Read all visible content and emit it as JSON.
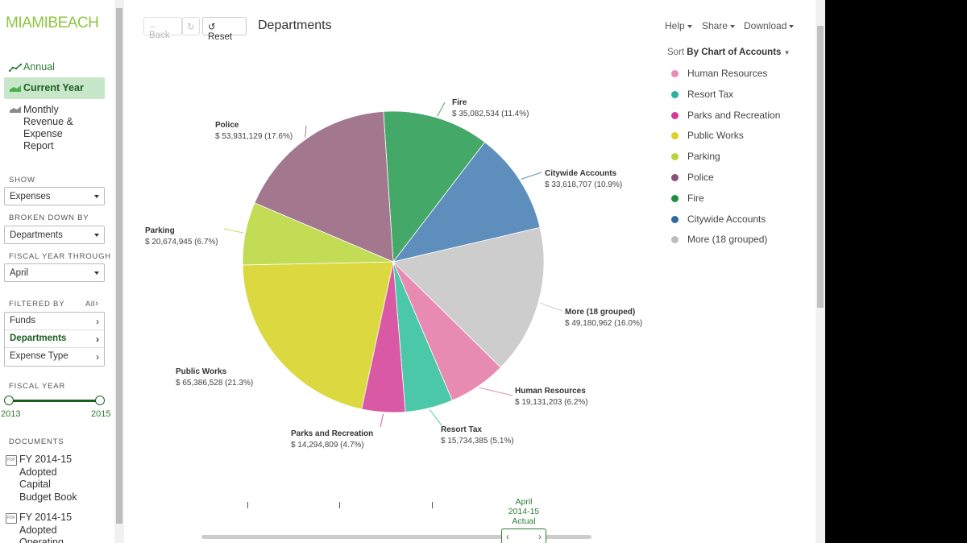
{
  "brand": {
    "part1": "MIAMI",
    "part2": "BEACH"
  },
  "nav": {
    "annual": "Annual",
    "current_year": "Current Year",
    "monthly_lines": [
      "Monthly",
      "Revenue &",
      "Expense",
      "Report"
    ]
  },
  "sidebar": {
    "show_label": "SHOW",
    "show_value": "Expenses",
    "broken_label": "BROKEN DOWN BY",
    "broken_value": "Departments",
    "fiscal_through_label": "FISCAL YEAR THROUGH",
    "fiscal_through_value": "April",
    "filtered_label": "FILTERED BY",
    "all_label": "All",
    "filters": [
      "Funds",
      "Departments",
      "Expense Type"
    ],
    "fiscal_year_label": "FISCAL YEAR",
    "year_start": "2013",
    "year_end": "2015",
    "documents_label": "DOCUMENTS",
    "documents": [
      {
        "lines": [
          "FY 2014-15",
          "Adopted",
          "Capital",
          "Budget Book"
        ]
      },
      {
        "lines": [
          "FY 2014-15",
          "Adopted",
          "Operating"
        ]
      }
    ]
  },
  "toolbar": {
    "back": "Back",
    "reset": "Reset",
    "title": "Departments",
    "help": "Help",
    "share": "Share",
    "download": "Download"
  },
  "sort": {
    "prefix": "Sort",
    "value": "By Chart of Accounts"
  },
  "legend": [
    {
      "label": "Human Resources",
      "color": "#e98bb3"
    },
    {
      "label": "Resort Tax",
      "color": "#2ab59a"
    },
    {
      "label": "Parks and Recreation",
      "color": "#d63a95"
    },
    {
      "label": "Public Works",
      "color": "#d8d22b"
    },
    {
      "label": "Parking",
      "color": "#b8d43b"
    },
    {
      "label": "Police",
      "color": "#8e4f77"
    },
    {
      "label": "Fire",
      "color": "#1f8e45"
    },
    {
      "label": "Citywide Accounts",
      "color": "#2c6ba0"
    },
    {
      "label": "More (18 grouped)",
      "color": "#bdbdbd"
    }
  ],
  "chart_data": {
    "type": "pie",
    "slices": [
      {
        "name": "Fire",
        "value": 35082534,
        "value_label": "$ 35,082,534 (11.4%)",
        "percent": 11.4,
        "color": "#44a868"
      },
      {
        "name": "Citywide Accounts",
        "value": 33618707,
        "value_label": "$ 33,618,707 (10.9%)",
        "percent": 10.9,
        "color": "#5e8fbc"
      },
      {
        "name": "More (18 grouped)",
        "value": 49180962,
        "value_label": "$ 49,180,962 (16.0%)",
        "percent": 16.0,
        "color": "#cdcdcd"
      },
      {
        "name": "Human Resources",
        "value": 19131203,
        "value_label": "$ 19,131,203 (6.2%)",
        "percent": 6.2,
        "color": "#e88bb2"
      },
      {
        "name": "Resort Tax",
        "value": 15734385,
        "value_label": "$ 15,734,385 (5.1%)",
        "percent": 5.1,
        "color": "#4ac8a8"
      },
      {
        "name": "Parks and Recreation",
        "value": 14294809,
        "value_label": "$ 14,294,809 (4.7%)",
        "percent": 4.7,
        "color": "#d959a4"
      },
      {
        "name": "Public Works",
        "value": 65386528,
        "value_label": "$ 65,386,528 (21.3%)",
        "percent": 21.3,
        "color": "#dcd83f"
      },
      {
        "name": "Parking",
        "value": 20674945,
        "value_label": "$ 20,674,945 (6.7%)",
        "percent": 6.7,
        "color": "#c2dc55"
      },
      {
        "name": "Police",
        "value": 53931129,
        "value_label": "$ 53,931,129 (17.6%)",
        "percent": 17.6,
        "color": "#a3788f"
      }
    ]
  },
  "timeline": {
    "label_lines": [
      "April",
      "2014-15",
      "Actual"
    ]
  }
}
